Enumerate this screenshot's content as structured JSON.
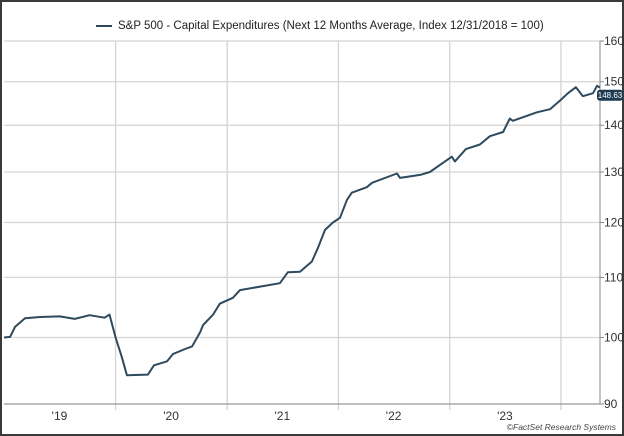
{
  "chart_data": {
    "type": "line",
    "title": "",
    "xlabel": "",
    "ylabel": "",
    "y_scale": "log",
    "ylim": [
      90,
      160
    ],
    "xlim": [
      "2018-12-31",
      "2024-05-08"
    ],
    "y_ticks": [
      "90",
      "100",
      "110",
      "120",
      "130",
      "140",
      "150",
      "160"
    ],
    "x_ticks": [
      {
        "label": "'19",
        "center": "2019-07-01"
      },
      {
        "label": "'20",
        "center": "2020-07-01"
      },
      {
        "label": "'21",
        "center": "2021-07-01"
      },
      {
        "label": "'22",
        "center": "2022-07-01"
      },
      {
        "label": "'23",
        "center": "2023-07-01"
      }
    ],
    "x_gridlines": [
      "2020-01-01",
      "2021-01-01",
      "2022-01-01",
      "2023-01-01",
      "2024-01-01"
    ],
    "grid": true,
    "legend_position": "top",
    "series": [
      {
        "name": "S&P 500 - Capital Expenditures (Next 12 Months Average, Index 12/31/2018 = 100)",
        "color": "#2e4a5e",
        "last_value_label": "148.63",
        "points": [
          [
            "2018-12-31",
            100
          ],
          [
            "2019-01-20",
            100.1
          ],
          [
            "2019-02-05",
            101.7
          ],
          [
            "2019-03-10",
            103.1
          ],
          [
            "2019-04-28",
            103.3
          ],
          [
            "2019-07-02",
            103.4
          ],
          [
            "2019-08-20",
            103.0
          ],
          [
            "2019-10-08",
            103.6
          ],
          [
            "2019-11-26",
            103.2
          ],
          [
            "2019-12-12",
            103.7
          ],
          [
            "2020-01-01",
            100
          ],
          [
            "2020-01-21",
            97
          ],
          [
            "2020-02-07",
            94.2
          ],
          [
            "2020-04-16",
            94.3
          ],
          [
            "2020-05-06",
            95.7
          ],
          [
            "2020-06-18",
            96.3
          ],
          [
            "2020-07-07",
            97.4
          ],
          [
            "2020-08-16",
            98.2
          ],
          [
            "2020-09-08",
            98.6
          ],
          [
            "2020-10-04",
            100.8
          ],
          [
            "2020-10-14",
            102
          ],
          [
            "2020-11-16",
            103.7
          ],
          [
            "2020-12-08",
            105.5
          ],
          [
            "2021-01-20",
            106.5
          ],
          [
            "2021-02-12",
            107.8
          ],
          [
            "2021-06-23",
            109
          ],
          [
            "2021-07-19",
            110.9
          ],
          [
            "2021-08-28",
            111
          ],
          [
            "2021-10-06",
            112.8
          ],
          [
            "2021-10-26",
            115.3
          ],
          [
            "2021-11-18",
            118.6
          ],
          [
            "2021-12-14",
            120
          ],
          [
            "2022-01-06",
            120.9
          ],
          [
            "2022-01-29",
            124.4
          ],
          [
            "2022-02-14",
            125.8
          ],
          [
            "2022-04-04",
            126.9
          ],
          [
            "2022-04-21",
            127.8
          ],
          [
            "2022-07-12",
            129.7
          ],
          [
            "2022-07-22",
            128.8
          ],
          [
            "2022-09-26",
            129.4
          ],
          [
            "2022-10-28",
            130
          ],
          [
            "2022-12-10",
            131.9
          ],
          [
            "2023-01-08",
            133.2
          ],
          [
            "2023-01-18",
            132.2
          ],
          [
            "2023-02-23",
            134.8
          ],
          [
            "2023-04-10",
            135.8
          ],
          [
            "2023-05-13",
            137.6
          ],
          [
            "2023-06-25",
            138.5
          ],
          [
            "2023-07-17",
            141.5
          ],
          [
            "2023-07-27",
            141
          ],
          [
            "2023-10-14",
            142.9
          ],
          [
            "2023-11-26",
            143.6
          ],
          [
            "2023-12-29",
            145.6
          ],
          [
            "2024-01-24",
            147.3
          ],
          [
            "2024-02-19",
            148.7
          ],
          [
            "2024-03-13",
            146.6
          ],
          [
            "2024-04-15",
            147.3
          ],
          [
            "2024-04-28",
            149
          ],
          [
            "2024-05-08",
            148.63
          ]
        ]
      }
    ],
    "source_credit": "©FactSet Research Systems"
  },
  "colors": {
    "line": "#2e4a5e",
    "grid": "#d4d4d4",
    "label_box": "#1f3b52"
  }
}
